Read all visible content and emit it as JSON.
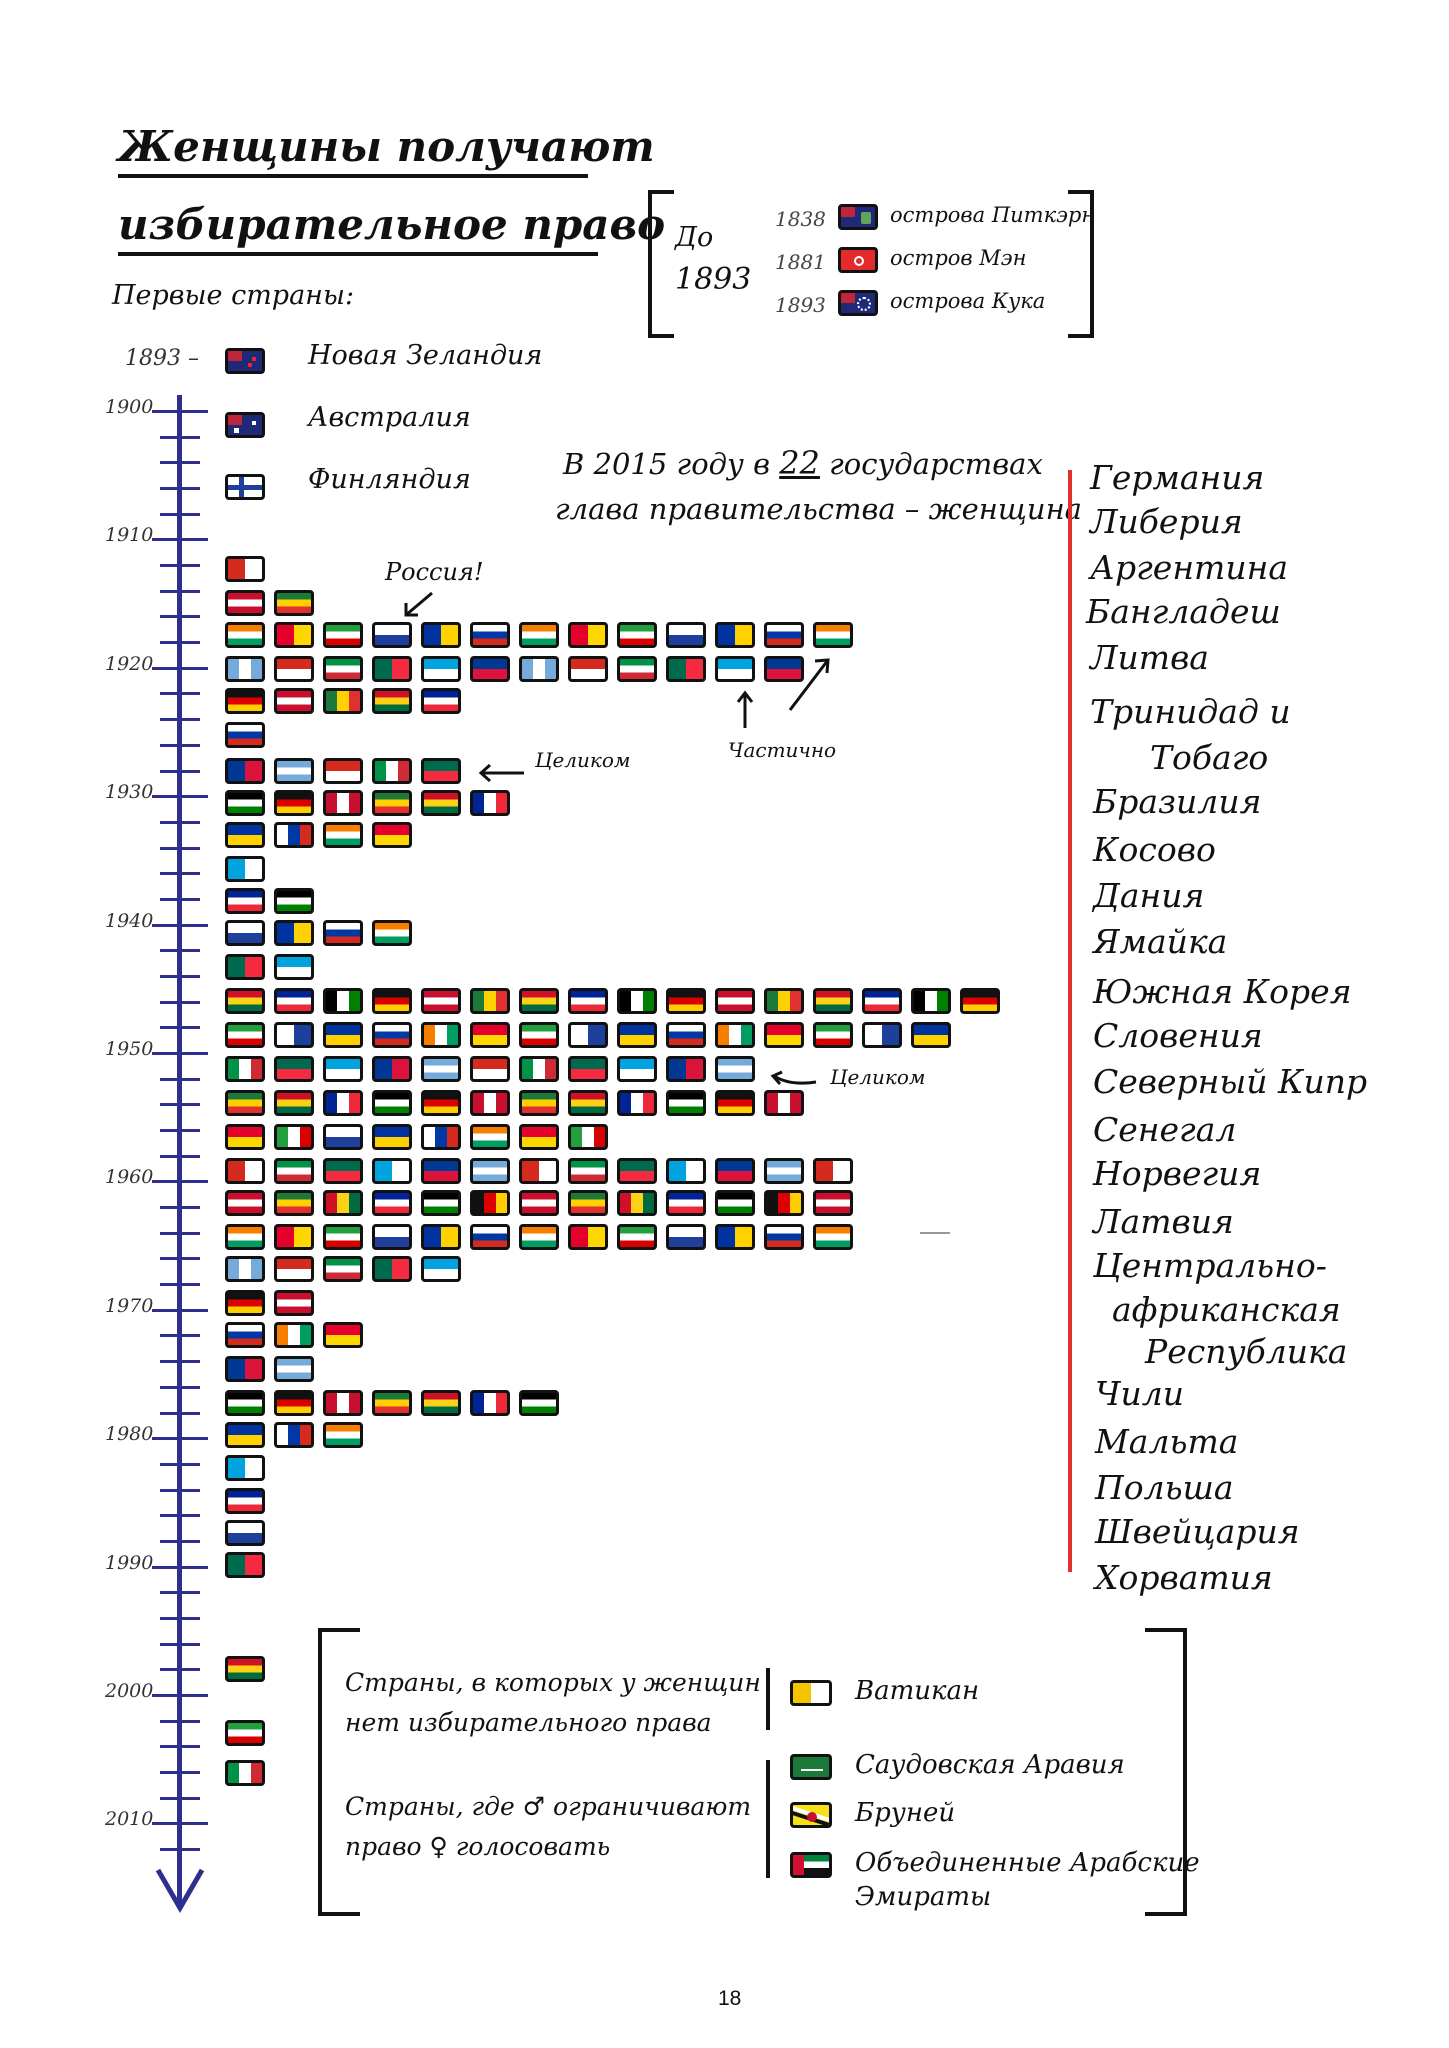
{
  "title": {
    "line1": "Женщины получают",
    "line2": "избирательное право"
  },
  "first_countries_label": "Первые страны:",
  "before_box": {
    "label_do": "До",
    "label_year": "1893",
    "items": [
      {
        "year": "1838",
        "name": "острова Питкэрн",
        "icon": "pitcairn-flag"
      },
      {
        "year": "1881",
        "name": "остров Мэн",
        "icon": "isle-of-man-flag"
      },
      {
        "year": "1893",
        "name": "острова Кука",
        "icon": "cook-islands-flag"
      }
    ]
  },
  "first_countries": [
    {
      "year": "1893 –",
      "name": "Новая Зеландия",
      "icon": "new-zealand-flag"
    },
    {
      "year": "",
      "name": "Австралия",
      "icon": "australia-flag"
    },
    {
      "year": "",
      "name": "Финляндия",
      "icon": "finland-flag"
    }
  ],
  "timeline": {
    "decades": [
      "1900",
      "1910",
      "1920",
      "1930",
      "1940",
      "1950",
      "1960",
      "1970",
      "1980",
      "1990",
      "2000",
      "2010"
    ],
    "axis_color": "#2e2e8f"
  },
  "annotations": {
    "russia": "Россия!",
    "partially": "Частично",
    "fully_1": "Целиком",
    "fully_2": "Целиком"
  },
  "women_leaders": {
    "heading_part1": "В 2015 году в",
    "heading_number": "22",
    "heading_part2": "государствах",
    "heading_line2": "глава правительства – женщина",
    "countries": [
      "Германия",
      "Либерия",
      "Аргентина",
      "Бангладеш",
      "Литва",
      "Тринидад и",
      "Тобаго",
      "Бразилия",
      "Косово",
      "Дания",
      "Ямайка",
      "Южная Корея",
      "Словения",
      "Северный Кипр",
      "Сенегал",
      "Норвегия",
      "Латвия",
      "Центрально-",
      "африканская",
      "Республика",
      "Чили",
      "Мальта",
      "Польша",
      "Швейцария",
      "Хорватия"
    ],
    "line_color": "#e03030"
  },
  "bottom_box": {
    "no_vote_line1": "Страны, в которых у женщин",
    "no_vote_line2": "нет избирательного права",
    "restricted_line1": "Страны, где ♂ ограничивают",
    "restricted_line2": "право ♀ голосовать",
    "vatican": "Ватикан",
    "saudi": "Саудовская Аравия",
    "brunei": "Бруней",
    "uae_line1": "Объединенные Арабские",
    "uae_line2": "Эмираты"
  },
  "page_number": "18"
}
